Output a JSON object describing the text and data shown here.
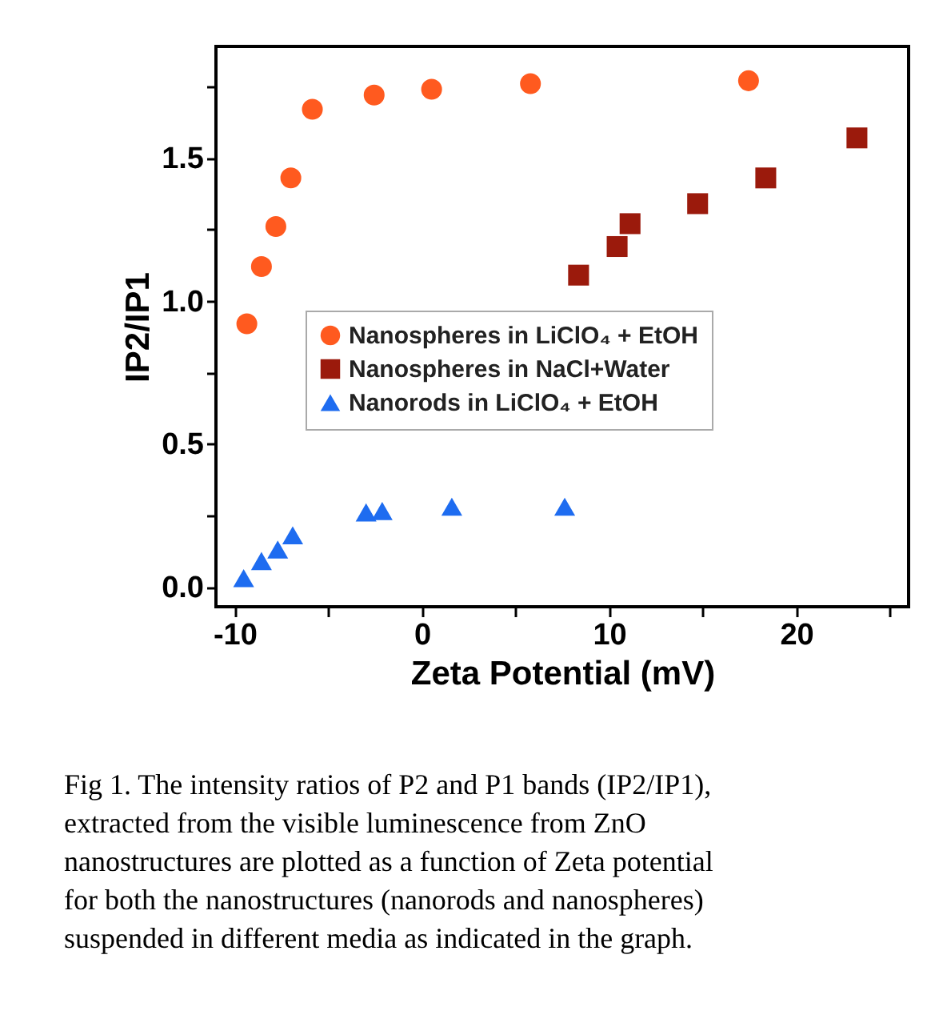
{
  "chart_data": {
    "type": "scatter",
    "xlabel": "Zeta Potential (mV)",
    "ylabel": "IP2/IP1",
    "xlim": [
      -11,
      26
    ],
    "xticks": [
      {
        "value": -10,
        "label": "-10"
      },
      {
        "value": -5,
        "label": null
      },
      {
        "value": 0,
        "label": "0"
      },
      {
        "value": 5,
        "label": null
      },
      {
        "value": 10,
        "label": "10"
      },
      {
        "value": 15,
        "label": null
      },
      {
        "value": 20,
        "label": "20"
      },
      {
        "value": 25,
        "label": null
      }
    ],
    "ylim": [
      -0.07,
      1.89
    ],
    "yticks": [
      {
        "value": 0,
        "label": "0.0"
      },
      {
        "value": 0.25,
        "label": null
      },
      {
        "value": 0.5,
        "label": "0.5"
      },
      {
        "value": 0.75,
        "label": null
      },
      {
        "value": 1.0,
        "label": "1.0"
      },
      {
        "value": 1.25,
        "label": null
      },
      {
        "value": 1.5,
        "label": "1.5"
      },
      {
        "value": 1.75,
        "label": null
      }
    ],
    "grid": false,
    "legend": "center",
    "series": [
      {
        "name": "Nanospheres in LiClO₄ + EtOH",
        "color": "#ff5a1f",
        "marker": "circle",
        "x": [
          -9.35,
          -8.57,
          -7.8,
          -7.0,
          -5.85,
          -2.55,
          0.52,
          5.8,
          17.45
        ],
        "values": [
          0.92,
          1.12,
          1.26,
          1.43,
          1.67,
          1.72,
          1.74,
          1.76,
          1.77
        ]
      },
      {
        "name": "Nanospheres in NaCl+Water",
        "color": "#9b1a0c",
        "marker": "square",
        "x": [
          8.37,
          10.43,
          11.12,
          14.73,
          18.37,
          23.24
        ],
        "values": [
          1.09,
          1.19,
          1.27,
          1.34,
          1.43,
          1.57
        ]
      },
      {
        "name": "Nanorods in LiClO₄ + EtOH",
        "color": "#1e6cf0",
        "marker": "triangle",
        "x": [
          -9.52,
          -8.57,
          -7.7,
          -6.9,
          -2.98,
          -2.12,
          1.6,
          7.63
        ],
        "values": [
          0.03,
          0.09,
          0.13,
          0.18,
          0.26,
          0.265,
          0.28,
          0.28
        ]
      }
    ],
    "annotations": [
      "Fig 1. The intensity ratios of P2 and P1 bands (IP2/IP1), extracted from the visible luminescence from ZnO nanostructures are plotted as a function of Zeta potential for both the nanostructures (nanorods and nanospheres) suspended in different media as indicated in the graph."
    ]
  }
}
